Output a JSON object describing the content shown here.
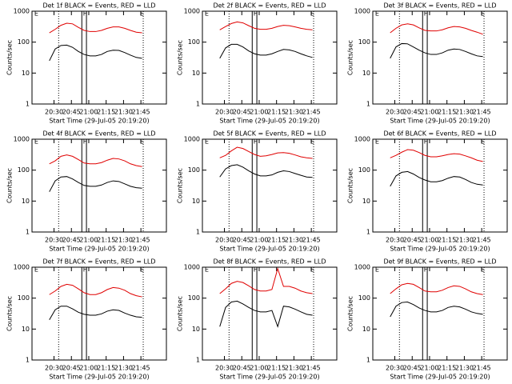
{
  "chart_data": [
    {
      "type": "line",
      "title": "Det 1f BLACK = Events, RED = LLD",
      "xlabel": "Start Time (29-Jul-05 20:19:20)",
      "ylabel": "Counts/sec",
      "yscale": "log",
      "xlim": [
        1211,
        1327
      ],
      "ylim": [
        1,
        1000
      ],
      "yticks": [
        1,
        10,
        100,
        1000
      ],
      "xticks": [
        {
          "value": 1230,
          "label": "20:30"
        },
        {
          "value": 1245,
          "label": "20:45"
        },
        {
          "value": 1260,
          "label": "21:00"
        },
        {
          "value": 1275,
          "label": "21:15"
        },
        {
          "value": 1290,
          "label": "21:30"
        },
        {
          "value": 1305,
          "label": "21:45"
        }
      ],
      "annotations": [
        {
          "text": "E",
          "x": 1213
        },
        {
          "text": "F",
          "x": 1255
        },
        {
          "text": "E",
          "x": 1304
        }
      ],
      "dotted_lines": [
        1234,
        1307
      ],
      "band": [
        1254,
        1258
      ],
      "x": [
        1226,
        1231,
        1236,
        1241,
        1246,
        1251,
        1256,
        1261,
        1266,
        1271,
        1276,
        1281,
        1286,
        1291,
        1296,
        1301,
        1306
      ],
      "series": [
        {
          "color": "#e00000",
          "values": [
            200,
            260,
            350,
            410,
            390,
            300,
            240,
            220,
            220,
            240,
            280,
            310,
            310,
            280,
            240,
            210,
            200
          ]
        },
        {
          "color": "#000000",
          "values": [
            25,
            60,
            78,
            80,
            68,
            50,
            40,
            36,
            36,
            40,
            50,
            55,
            54,
            46,
            38,
            32,
            30
          ]
        }
      ]
    },
    {
      "type": "line",
      "title": "Det 2f BLACK = Events, RED = LLD",
      "xlabel": "Start Time (29-Jul-05 20:19:20)",
      "ylabel": "Counts/sec",
      "yscale": "log",
      "xlim": [
        1211,
        1327
      ],
      "ylim": [
        1,
        1000
      ],
      "yticks": [
        1,
        10,
        100,
        1000
      ],
      "xticks": [
        {
          "value": 1230,
          "label": "20:30"
        },
        {
          "value": 1245,
          "label": "20:45"
        },
        {
          "value": 1260,
          "label": "21:00"
        },
        {
          "value": 1275,
          "label": "21:15"
        },
        {
          "value": 1290,
          "label": "21:30"
        },
        {
          "value": 1305,
          "label": "21:45"
        }
      ],
      "annotations": [
        {
          "text": "E",
          "x": 1213
        },
        {
          "text": "F",
          "x": 1255
        },
        {
          "text": "E",
          "x": 1304
        }
      ],
      "dotted_lines": [
        1234,
        1307
      ],
      "band": [
        1254,
        1258
      ],
      "x": [
        1226,
        1231,
        1236,
        1241,
        1246,
        1251,
        1256,
        1261,
        1266,
        1271,
        1276,
        1281,
        1286,
        1291,
        1296,
        1301,
        1306
      ],
      "series": [
        {
          "color": "#e00000",
          "values": [
            250,
            320,
            400,
            450,
            420,
            340,
            280,
            260,
            260,
            280,
            320,
            350,
            340,
            310,
            280,
            260,
            250
          ]
        },
        {
          "color": "#000000",
          "values": [
            30,
            65,
            85,
            85,
            70,
            52,
            42,
            38,
            38,
            42,
            50,
            58,
            56,
            50,
            42,
            36,
            32
          ]
        }
      ]
    },
    {
      "type": "line",
      "title": "Det 3f BLACK = Events, RED = LLD",
      "xlabel": "Start Time (29-Jul-05 20:19:20)",
      "ylabel": "Counts/sec",
      "yscale": "log",
      "xlim": [
        1211,
        1327
      ],
      "ylim": [
        1,
        1000
      ],
      "yticks": [
        1,
        10,
        100,
        1000
      ],
      "xticks": [
        {
          "value": 1230,
          "label": "20:30"
        },
        {
          "value": 1245,
          "label": "20:45"
        },
        {
          "value": 1260,
          "label": "21:00"
        },
        {
          "value": 1275,
          "label": "21:15"
        },
        {
          "value": 1290,
          "label": "21:30"
        },
        {
          "value": 1305,
          "label": "21:45"
        }
      ],
      "annotations": [
        {
          "text": "E",
          "x": 1213
        },
        {
          "text": "F",
          "x": 1255
        },
        {
          "text": "E",
          "x": 1304
        }
      ],
      "dotted_lines": [
        1234,
        1307
      ],
      "band": [
        1254,
        1258
      ],
      "x": [
        1226,
        1231,
        1236,
        1241,
        1246,
        1251,
        1256,
        1261,
        1266,
        1271,
        1276,
        1281,
        1286,
        1291,
        1296,
        1301,
        1306
      ],
      "series": [
        {
          "color": "#e00000",
          "values": [
            200,
            280,
            360,
            390,
            360,
            290,
            240,
            230,
            230,
            250,
            290,
            320,
            310,
            280,
            240,
            210,
            180
          ]
        },
        {
          "color": "#000000",
          "values": [
            30,
            70,
            90,
            88,
            70,
            55,
            45,
            40,
            40,
            45,
            55,
            60,
            58,
            50,
            42,
            36,
            34
          ]
        }
      ]
    },
    {
      "type": "line",
      "title": "Det 4f BLACK = Events, RED = LLD",
      "xlabel": "Start Time (29-Jul-05 20:19:20)",
      "ylabel": "Counts/sec",
      "yscale": "log",
      "xlim": [
        1211,
        1327
      ],
      "ylim": [
        1,
        1000
      ],
      "yticks": [
        1,
        10,
        100,
        1000
      ],
      "xticks": [
        {
          "value": 1230,
          "label": "20:30"
        },
        {
          "value": 1245,
          "label": "20:45"
        },
        {
          "value": 1260,
          "label": "21:00"
        },
        {
          "value": 1275,
          "label": "21:15"
        },
        {
          "value": 1290,
          "label": "21:30"
        },
        {
          "value": 1305,
          "label": "21:45"
        }
      ],
      "annotations": [
        {
          "text": "E",
          "x": 1213
        },
        {
          "text": "F",
          "x": 1255
        },
        {
          "text": "E",
          "x": 1304
        }
      ],
      "dotted_lines": [
        1234,
        1307
      ],
      "band": [
        1254,
        1258
      ],
      "x": [
        1226,
        1231,
        1236,
        1241,
        1246,
        1251,
        1256,
        1261,
        1266,
        1271,
        1276,
        1281,
        1286,
        1291,
        1296,
        1301,
        1306
      ],
      "series": [
        {
          "color": "#e00000",
          "values": [
            160,
            200,
            280,
            310,
            280,
            220,
            170,
            160,
            160,
            175,
            210,
            240,
            230,
            200,
            160,
            140,
            130
          ]
        },
        {
          "color": "#000000",
          "values": [
            20,
            45,
            60,
            62,
            52,
            40,
            32,
            30,
            30,
            33,
            40,
            45,
            43,
            36,
            30,
            27,
            26
          ]
        }
      ]
    },
    {
      "type": "line",
      "title": "Det 5f BLACK = Events, RED = LLD",
      "xlabel": "Start Time (29-Jul-05 20:19:20)",
      "ylabel": "Counts/sec",
      "yscale": "log",
      "xlim": [
        1211,
        1327
      ],
      "ylim": [
        1,
        1000
      ],
      "yticks": [
        1,
        10,
        100,
        1000
      ],
      "xticks": [
        {
          "value": 1230,
          "label": "20:30"
        },
        {
          "value": 1245,
          "label": "20:45"
        },
        {
          "value": 1260,
          "label": "21:00"
        },
        {
          "value": 1275,
          "label": "21:15"
        },
        {
          "value": 1290,
          "label": "21:30"
        },
        {
          "value": 1305,
          "label": "21:45"
        }
      ],
      "annotations": [
        {
          "text": "E",
          "x": 1213
        },
        {
          "text": "F",
          "x": 1255
        },
        {
          "text": "E",
          "x": 1304
        }
      ],
      "dotted_lines": [
        1234,
        1307
      ],
      "band": [
        1254,
        1258
      ],
      "x": [
        1226,
        1231,
        1236,
        1241,
        1246,
        1251,
        1256,
        1261,
        1266,
        1271,
        1276,
        1281,
        1286,
        1291,
        1296,
        1301,
        1306
      ],
      "series": [
        {
          "color": "#e00000",
          "values": [
            250,
            300,
            420,
            550,
            500,
            400,
            320,
            280,
            290,
            320,
            360,
            370,
            350,
            310,
            270,
            250,
            240
          ]
        },
        {
          "color": "#000000",
          "values": [
            60,
            110,
            140,
            150,
            125,
            95,
            75,
            65,
            65,
            70,
            85,
            95,
            90,
            78,
            68,
            60,
            58
          ]
        }
      ]
    },
    {
      "type": "line",
      "title": "Det 6f BLACK = Events, RED = LLD",
      "xlabel": "Start Time (29-Jul-05 20:19:20)",
      "ylabel": "Counts/sec",
      "yscale": "log",
      "xlim": [
        1211,
        1327
      ],
      "ylim": [
        1,
        1000
      ],
      "yticks": [
        1,
        10,
        100,
        1000
      ],
      "xticks": [
        {
          "value": 1230,
          "label": "20:30"
        },
        {
          "value": 1245,
          "label": "20:45"
        },
        {
          "value": 1260,
          "label": "21:00"
        },
        {
          "value": 1275,
          "label": "21:15"
        },
        {
          "value": 1290,
          "label": "21:30"
        },
        {
          "value": 1305,
          "label": "21:45"
        }
      ],
      "annotations": [
        {
          "text": "E",
          "x": 1213
        },
        {
          "text": "F",
          "x": 1255
        },
        {
          "text": "E",
          "x": 1304
        }
      ],
      "dotted_lines": [
        1234,
        1307
      ],
      "band": [
        1254,
        1258
      ],
      "x": [
        1226,
        1231,
        1236,
        1241,
        1246,
        1251,
        1256,
        1261,
        1266,
        1271,
        1276,
        1281,
        1286,
        1291,
        1296,
        1301,
        1306
      ],
      "series": [
        {
          "color": "#e00000",
          "values": [
            250,
            300,
            380,
            460,
            440,
            370,
            300,
            270,
            270,
            290,
            320,
            340,
            330,
            290,
            250,
            210,
            190
          ]
        },
        {
          "color": "#000000",
          "values": [
            30,
            65,
            85,
            90,
            75,
            58,
            48,
            42,
            42,
            46,
            55,
            62,
            60,
            50,
            40,
            35,
            33
          ]
        }
      ]
    },
    {
      "type": "line",
      "title": "Det 7f BLACK = Events, RED = LLD",
      "xlabel": "Start Time (29-Jul-05 20:19:20)",
      "ylabel": "Counts/sec",
      "yscale": "log",
      "xlim": [
        1211,
        1327
      ],
      "ylim": [
        1,
        1000
      ],
      "yticks": [
        1,
        10,
        100,
        1000
      ],
      "xticks": [
        {
          "value": 1230,
          "label": "20:30"
        },
        {
          "value": 1245,
          "label": "20:45"
        },
        {
          "value": 1260,
          "label": "21:00"
        },
        {
          "value": 1275,
          "label": "21:15"
        },
        {
          "value": 1290,
          "label": "21:30"
        },
        {
          "value": 1305,
          "label": "21:45"
        }
      ],
      "annotations": [
        {
          "text": "E",
          "x": 1213
        },
        {
          "text": "F",
          "x": 1255
        },
        {
          "text": "E",
          "x": 1304
        }
      ],
      "dotted_lines": [
        1234,
        1307
      ],
      "band": [
        1254,
        1258
      ],
      "x": [
        1226,
        1231,
        1236,
        1241,
        1246,
        1251,
        1256,
        1261,
        1266,
        1271,
        1276,
        1281,
        1286,
        1291,
        1296,
        1301,
        1306
      ],
      "series": [
        {
          "color": "#e00000",
          "values": [
            130,
            170,
            240,
            280,
            260,
            200,
            150,
            130,
            130,
            150,
            190,
            220,
            210,
            180,
            140,
            120,
            110
          ]
        },
        {
          "color": "#000000",
          "values": [
            20,
            42,
            55,
            55,
            45,
            35,
            30,
            28,
            28,
            31,
            38,
            42,
            40,
            33,
            28,
            25,
            24
          ]
        }
      ]
    },
    {
      "type": "line",
      "title": "Det 8f BLACK = Events, RED = LLD",
      "xlabel": "Start Time (29-Jul-05 20:19:20)",
      "ylabel": "Counts/sec",
      "yscale": "log",
      "xlim": [
        1211,
        1327
      ],
      "ylim": [
        1,
        1000
      ],
      "yticks": [
        1,
        10,
        100,
        1000
      ],
      "xticks": [
        {
          "value": 1230,
          "label": "20:30"
        },
        {
          "value": 1245,
          "label": "20:45"
        },
        {
          "value": 1260,
          "label": "21:00"
        },
        {
          "value": 1275,
          "label": "21:15"
        },
        {
          "value": 1290,
          "label": "21:30"
        },
        {
          "value": 1305,
          "label": "21:45"
        }
      ],
      "annotations": [
        {
          "text": "E",
          "x": 1213
        },
        {
          "text": "F",
          "x": 1255
        },
        {
          "text": "E",
          "x": 1304
        }
      ],
      "dotted_lines": [
        1234,
        1307
      ],
      "band": [
        1254,
        1258
      ],
      "x": [
        1226,
        1231,
        1236,
        1241,
        1246,
        1251,
        1256,
        1261,
        1266,
        1271,
        1276,
        1281,
        1286,
        1291,
        1296,
        1301,
        1306
      ],
      "series": [
        {
          "color": "#e00000",
          "values": [
            140,
            200,
            300,
            350,
            320,
            250,
            190,
            170,
            170,
            190,
            900,
            240,
            240,
            210,
            170,
            150,
            140
          ]
        },
        {
          "color": "#000000",
          "values": [
            12,
            50,
            75,
            80,
            65,
            50,
            40,
            36,
            36,
            40,
            12,
            55,
            52,
            44,
            36,
            30,
            28
          ]
        }
      ]
    },
    {
      "type": "line",
      "title": "Det 9f BLACK = Events, RED = LLD",
      "xlabel": "Start Time (29-Jul-05 20:19:20)",
      "ylabel": "Counts/sec",
      "yscale": "log",
      "xlim": [
        1211,
        1327
      ],
      "ylim": [
        1,
        1000
      ],
      "yticks": [
        1,
        10,
        100,
        1000
      ],
      "xticks": [
        {
          "value": 1230,
          "label": "20:30"
        },
        {
          "value": 1245,
          "label": "20:45"
        },
        {
          "value": 1260,
          "label": "21:00"
        },
        {
          "value": 1275,
          "label": "21:15"
        },
        {
          "value": 1290,
          "label": "21:30"
        },
        {
          "value": 1305,
          "label": "21:45"
        }
      ],
      "annotations": [
        {
          "text": "E",
          "x": 1213
        },
        {
          "text": "F",
          "x": 1255
        },
        {
          "text": "E",
          "x": 1304
        }
      ],
      "dotted_lines": [
        1234,
        1307
      ],
      "band": [
        1254,
        1258
      ],
      "x": [
        1226,
        1231,
        1236,
        1241,
        1246,
        1251,
        1256,
        1261,
        1266,
        1271,
        1276,
        1281,
        1286,
        1291,
        1296,
        1301,
        1306
      ],
      "series": [
        {
          "color": "#e00000",
          "values": [
            140,
            200,
            270,
            300,
            280,
            220,
            170,
            160,
            160,
            180,
            220,
            250,
            240,
            200,
            160,
            140,
            130
          ]
        },
        {
          "color": "#000000",
          "values": [
            25,
            55,
            72,
            75,
            62,
            48,
            40,
            36,
            36,
            40,
            50,
            55,
            52,
            44,
            36,
            32,
            30
          ]
        }
      ]
    }
  ]
}
